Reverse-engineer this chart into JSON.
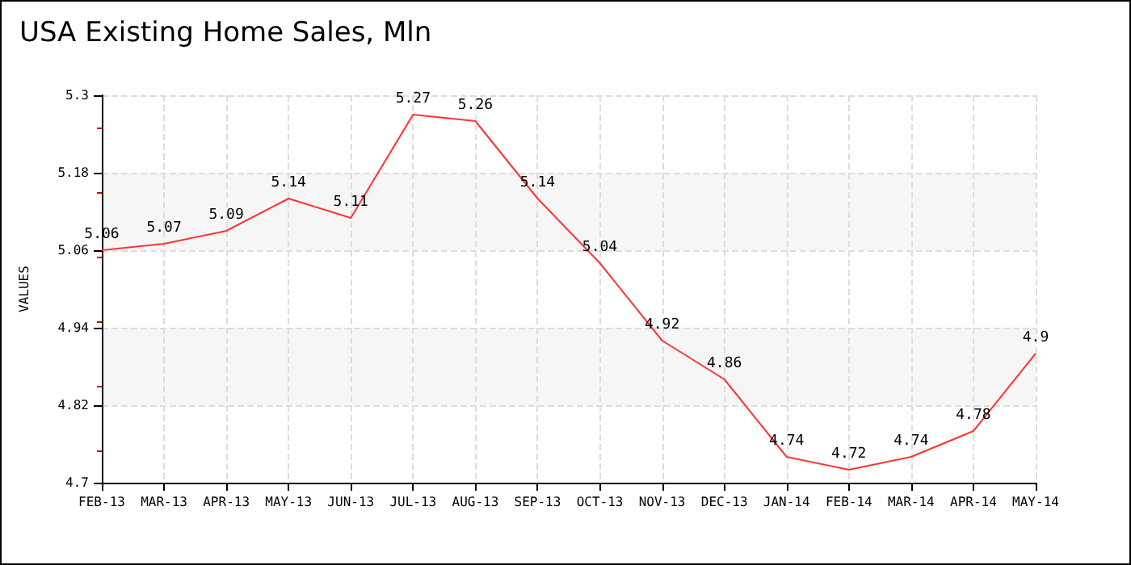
{
  "chart_data": {
    "type": "line",
    "title": "USA Existing Home Sales, Mln",
    "ylabel": "VALUES",
    "categories": [
      "FEB-13",
      "MAR-13",
      "APR-13",
      "MAY-13",
      "JUN-13",
      "JUL-13",
      "AUG-13",
      "SEP-13",
      "OCT-13",
      "NOV-13",
      "DEC-13",
      "JAN-14",
      "FEB-14",
      "MAR-14",
      "APR-14",
      "MAY-14"
    ],
    "series": [
      {
        "color": "#ff3333",
        "values": [
          5.06,
          5.07,
          5.09,
          5.14,
          5.11,
          5.27,
          5.26,
          5.14,
          5.04,
          4.92,
          4.86,
          4.74,
          4.72,
          4.74,
          4.78,
          4.9
        ]
      }
    ],
    "ylim": [
      4.7,
      5.3
    ],
    "yticks": [
      4.7,
      4.82,
      4.94,
      5.06,
      5.18,
      5.3
    ],
    "grid": true,
    "data_labels": true,
    "marker": "none",
    "line_style": "solid"
  }
}
